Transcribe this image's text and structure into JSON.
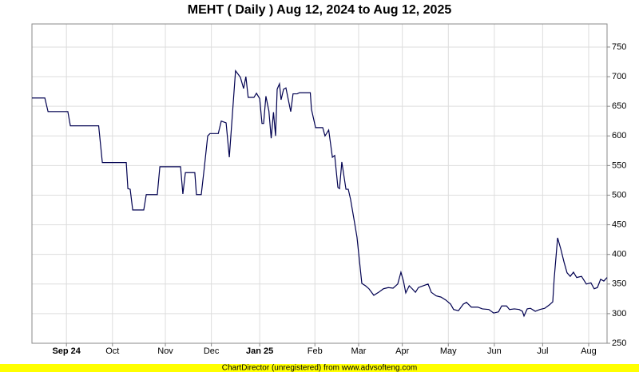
{
  "chart_data": {
    "type": "line",
    "title": "MEHT ( Daily ) Aug 12, 2024 to Aug 12, 2025",
    "footer": "ChartDirector (unregistered) from www.advsofteng.com",
    "xlim": [
      0,
      250
    ],
    "ylim": [
      250,
      789
    ],
    "xticks": [
      {
        "value": 15,
        "label": "Sep 24"
      },
      {
        "value": 35,
        "label": "Oct"
      },
      {
        "value": 58,
        "label": "Nov"
      },
      {
        "value": 78,
        "label": "Dec"
      },
      {
        "value": 99,
        "label": "Jan 25"
      },
      {
        "value": 123,
        "label": "Feb"
      },
      {
        "value": 142,
        "label": "Mar"
      },
      {
        "value": 161,
        "label": "Apr"
      },
      {
        "value": 181,
        "label": "May"
      },
      {
        "value": 201,
        "label": "Jun"
      },
      {
        "value": 222,
        "label": "Jul"
      },
      {
        "value": 242,
        "label": "Aug"
      }
    ],
    "yticks": [
      250,
      300,
      350,
      400,
      450,
      500,
      550,
      600,
      650,
      700,
      750
    ],
    "grid": true,
    "series": [
      {
        "color": "#000050",
        "x": [
          0,
          5.6,
          7,
          15.6,
          16.7,
          29,
          30.6,
          41,
          41.7,
          42.7,
          43.8,
          48.6,
          49.7,
          54.5,
          55.6,
          64.6,
          65.6,
          66.7,
          70.8,
          71.5,
          73.6,
          75,
          76.4,
          77.4,
          81,
          82.3,
          84.4,
          85.8,
          88.5,
          90.6,
          92,
          93,
          94,
          96.5,
          97.6,
          99,
          100,
          100.7,
          101.7,
          103,
          104,
          105,
          105.9,
          106.6,
          107.6,
          108.3,
          109.4,
          110.4,
          112.5,
          113.5,
          115.3,
          116.3,
          121,
          121.5,
          123.3,
          126.4,
          127.4,
          129,
          130.6,
          131.6,
          133,
          133.7,
          134.7,
          136.5,
          137.5,
          138.5,
          140,
          141.3,
          143.4,
          145,
          146.5,
          148.6,
          150.7,
          152.8,
          154.9,
          157,
          159,
          160.4,
          161.5,
          162.5,
          164,
          165.3,
          166.7,
          168,
          170,
          172.2,
          173.6,
          175.7,
          177.8,
          179.9,
          182,
          183.3,
          185.4,
          187.5,
          188.9,
          191,
          193.8,
          195.8,
          198.6,
          200.7,
          202.8,
          204.2,
          206.3,
          207.6,
          209.7,
          211.8,
          213.2,
          213.9,
          215.3,
          216.7,
          218.8,
          220.8,
          222.9,
          225,
          226.4,
          227,
          228.5,
          229.9,
          231.3,
          232.6,
          234,
          235.4,
          236.8,
          238.9,
          241,
          243,
          244.4,
          245.8,
          247.2,
          248.6,
          250
        ],
        "values": [
          664,
          664,
          641,
          641,
          617,
          617,
          555,
          555,
          511,
          510,
          475,
          475,
          501,
          501,
          548,
          548,
          502,
          538,
          538,
          501,
          501,
          549,
          600,
          604,
          604,
          625,
          622,
          564,
          710,
          699,
          680,
          700,
          665,
          665,
          672,
          663,
          621,
          621,
          667,
          642,
          596,
          640,
          600,
          679,
          688,
          661,
          679,
          681,
          641,
          671,
          671,
          673,
          673,
          645,
          614,
          614,
          600,
          610,
          564,
          567,
          513,
          511,
          556,
          510,
          510,
          493,
          459,
          429,
          351,
          347,
          342,
          331,
          336,
          342,
          344,
          343,
          350,
          370,
          355,
          335,
          347,
          342,
          336,
          344,
          347,
          350,
          336,
          330,
          328,
          323,
          316,
          307,
          305,
          316,
          319,
          311,
          311,
          308,
          307,
          301,
          303,
          313,
          313,
          307,
          308,
          307,
          304,
          296,
          308,
          309,
          304,
          307,
          309,
          315,
          320,
          358,
          428,
          409,
          387,
          369,
          363,
          370,
          361,
          363,
          350,
          352,
          342,
          344,
          358,
          355,
          361
        ]
      }
    ]
  }
}
